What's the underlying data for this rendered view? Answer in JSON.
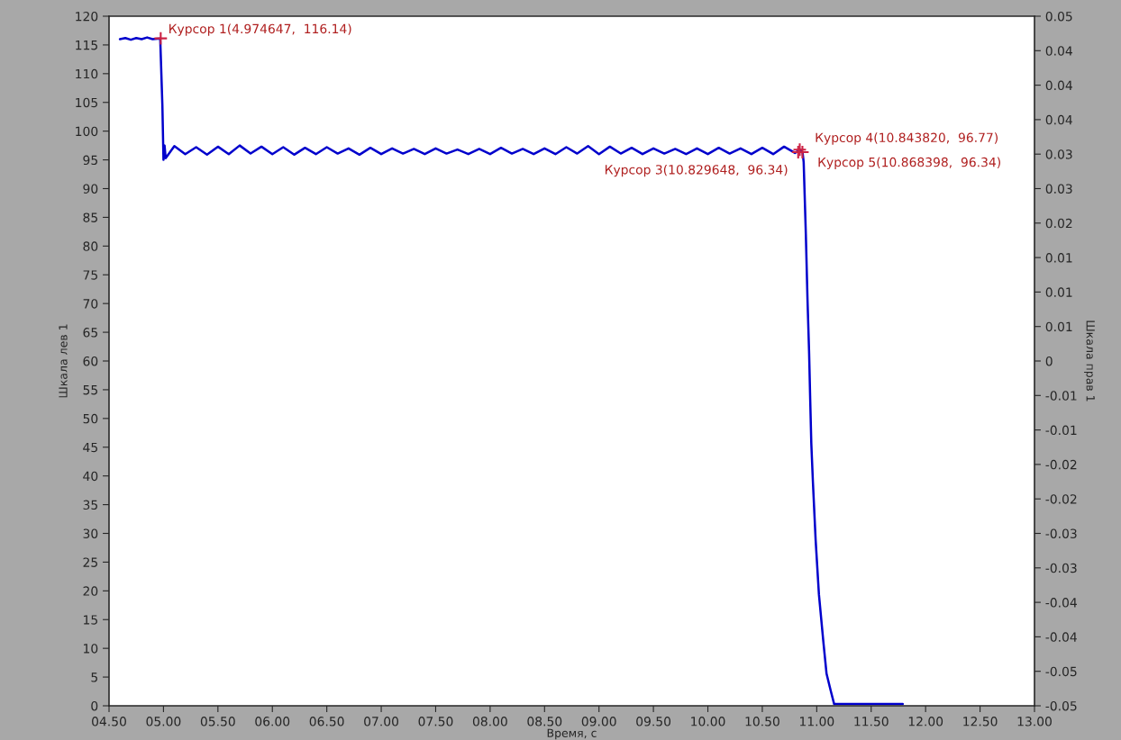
{
  "chart_data": {
    "type": "line",
    "xlabel": "Время, с",
    "ylabel": "Шкала лев 1",
    "y2label": "Шкала прав 1",
    "series": [
      {
        "color": "#0000cc",
        "x": [
          4.6,
          4.65,
          4.7,
          4.75,
          4.8,
          4.85,
          4.9,
          4.97,
          4.99,
          5.0,
          5.01,
          5.02,
          5.1,
          5.2,
          5.3,
          5.4,
          5.5,
          5.6,
          5.7,
          5.8,
          5.9,
          6.0,
          6.1,
          6.2,
          6.3,
          6.4,
          6.5,
          6.6,
          6.7,
          6.8,
          6.9,
          7.0,
          7.1,
          7.2,
          7.3,
          7.4,
          7.5,
          7.6,
          7.7,
          7.8,
          7.9,
          8.0,
          8.1,
          8.2,
          8.3,
          8.4,
          8.5,
          8.6,
          8.7,
          8.8,
          8.9,
          9.0,
          9.1,
          9.2,
          9.3,
          9.4,
          9.5,
          9.6,
          9.7,
          9.8,
          9.9,
          10.0,
          10.1,
          10.2,
          10.3,
          10.4,
          10.5,
          10.6,
          10.7,
          10.8,
          10.85,
          10.87,
          10.88,
          10.9,
          10.915,
          10.93,
          10.94,
          10.95,
          10.965,
          10.99,
          11.02,
          11.06,
          11.09,
          11.13,
          11.16,
          11.79
        ],
        "values": [
          116.0,
          116.2,
          115.9,
          116.2,
          116.0,
          116.3,
          116.0,
          116.14,
          104.5,
          95.0,
          97.5,
          95.3,
          97.4,
          96.0,
          97.2,
          95.9,
          97.3,
          96.0,
          97.5,
          96.1,
          97.3,
          96.0,
          97.2,
          95.9,
          97.1,
          96.0,
          97.2,
          96.1,
          97.0,
          95.9,
          97.1,
          96.0,
          97.0,
          96.1,
          96.9,
          96.0,
          97.0,
          96.1,
          96.8,
          96.0,
          96.9,
          96.0,
          97.1,
          96.1,
          96.9,
          96.0,
          97.0,
          96.0,
          97.2,
          96.1,
          97.4,
          96.0,
          97.3,
          96.1,
          97.1,
          96.0,
          97.0,
          96.1,
          96.9,
          96.0,
          97.0,
          96.0,
          97.1,
          96.1,
          97.0,
          96.0,
          97.1,
          96.0,
          97.3,
          96.2,
          96.77,
          96.3,
          94.6,
          82,
          70.8,
          61.4,
          53.3,
          45.7,
          38.9,
          28.8,
          19.4,
          11.3,
          5.6,
          2.5,
          0.3,
          0.3
        ]
      }
    ],
    "annotations": [
      {
        "text": "Курсор 1(4.974647,  116.14)",
        "x": 4.974647,
        "y": 116.14
      },
      {
        "text": "Курсор 3(10.829648,  96.34)",
        "x": 10.829648,
        "y": 96.34
      },
      {
        "text": "Курсор 4(10.843820,  96.77)",
        "x": 10.84382,
        "y": 96.77
      },
      {
        "text": "Курсор 5(10.868398,  96.34)",
        "x": 10.868398,
        "y": 96.34
      }
    ],
    "xlim": [
      4.5,
      13.0
    ],
    "xticks": [
      {
        "value": 4.5,
        "label": "04.50"
      },
      {
        "value": 5.0,
        "label": "05.00"
      },
      {
        "value": 5.5,
        "label": "05.50"
      },
      {
        "value": 6.0,
        "label": "06.00"
      },
      {
        "value": 6.5,
        "label": "06.50"
      },
      {
        "value": 7.0,
        "label": "07.00"
      },
      {
        "value": 7.5,
        "label": "07.50"
      },
      {
        "value": 8.0,
        "label": "08.00"
      },
      {
        "value": 8.5,
        "label": "08.50"
      },
      {
        "value": 9.0,
        "label": "09.00"
      },
      {
        "value": 9.5,
        "label": "09.50"
      },
      {
        "value": 10.0,
        "label": "10.00"
      },
      {
        "value": 10.5,
        "label": "10.50"
      },
      {
        "value": 11.0,
        "label": "11.00"
      },
      {
        "value": 11.5,
        "label": "11.50"
      },
      {
        "value": 12.0,
        "label": "12.00"
      },
      {
        "value": 12.5,
        "label": "12.50"
      },
      {
        "value": 13.0,
        "label": "13.00"
      }
    ],
    "ylim": [
      0,
      120
    ],
    "yticks": [
      0,
      5,
      10,
      15,
      20,
      25,
      30,
      35,
      40,
      45,
      50,
      55,
      60,
      65,
      70,
      75,
      80,
      85,
      90,
      95,
      100,
      105,
      110,
      115,
      120
    ],
    "y2lim": [
      -0.05,
      0.05
    ],
    "y2ticks": [
      {
        "value": 0.05,
        "label": "0.05"
      },
      {
        "value": 0.045,
        "label": "0.04"
      },
      {
        "value": 0.04,
        "label": "0.04"
      },
      {
        "value": 0.035,
        "label": "0.04"
      },
      {
        "value": 0.03,
        "label": "0.03"
      },
      {
        "value": 0.025,
        "label": "0.03"
      },
      {
        "value": 0.02,
        "label": "0.02"
      },
      {
        "value": 0.015,
        "label": "0.01"
      },
      {
        "value": 0.01,
        "label": "0.01"
      },
      {
        "value": 0.005,
        "label": "0.01"
      },
      {
        "value": 0,
        "label": "0"
      },
      {
        "value": -0.005,
        "label": "-0.01"
      },
      {
        "value": -0.01,
        "label": "-0.01"
      },
      {
        "value": -0.015,
        "label": "-0.02"
      },
      {
        "value": -0.02,
        "label": "-0.02"
      },
      {
        "value": -0.025,
        "label": "-0.03"
      },
      {
        "value": -0.03,
        "label": "-0.03"
      },
      {
        "value": -0.035,
        "label": "-0.04"
      },
      {
        "value": -0.04,
        "label": "-0.04"
      },
      {
        "value": -0.045,
        "label": "-0.05"
      },
      {
        "value": -0.05,
        "label": "-0.05"
      }
    ],
    "grid": false,
    "legend": false
  }
}
